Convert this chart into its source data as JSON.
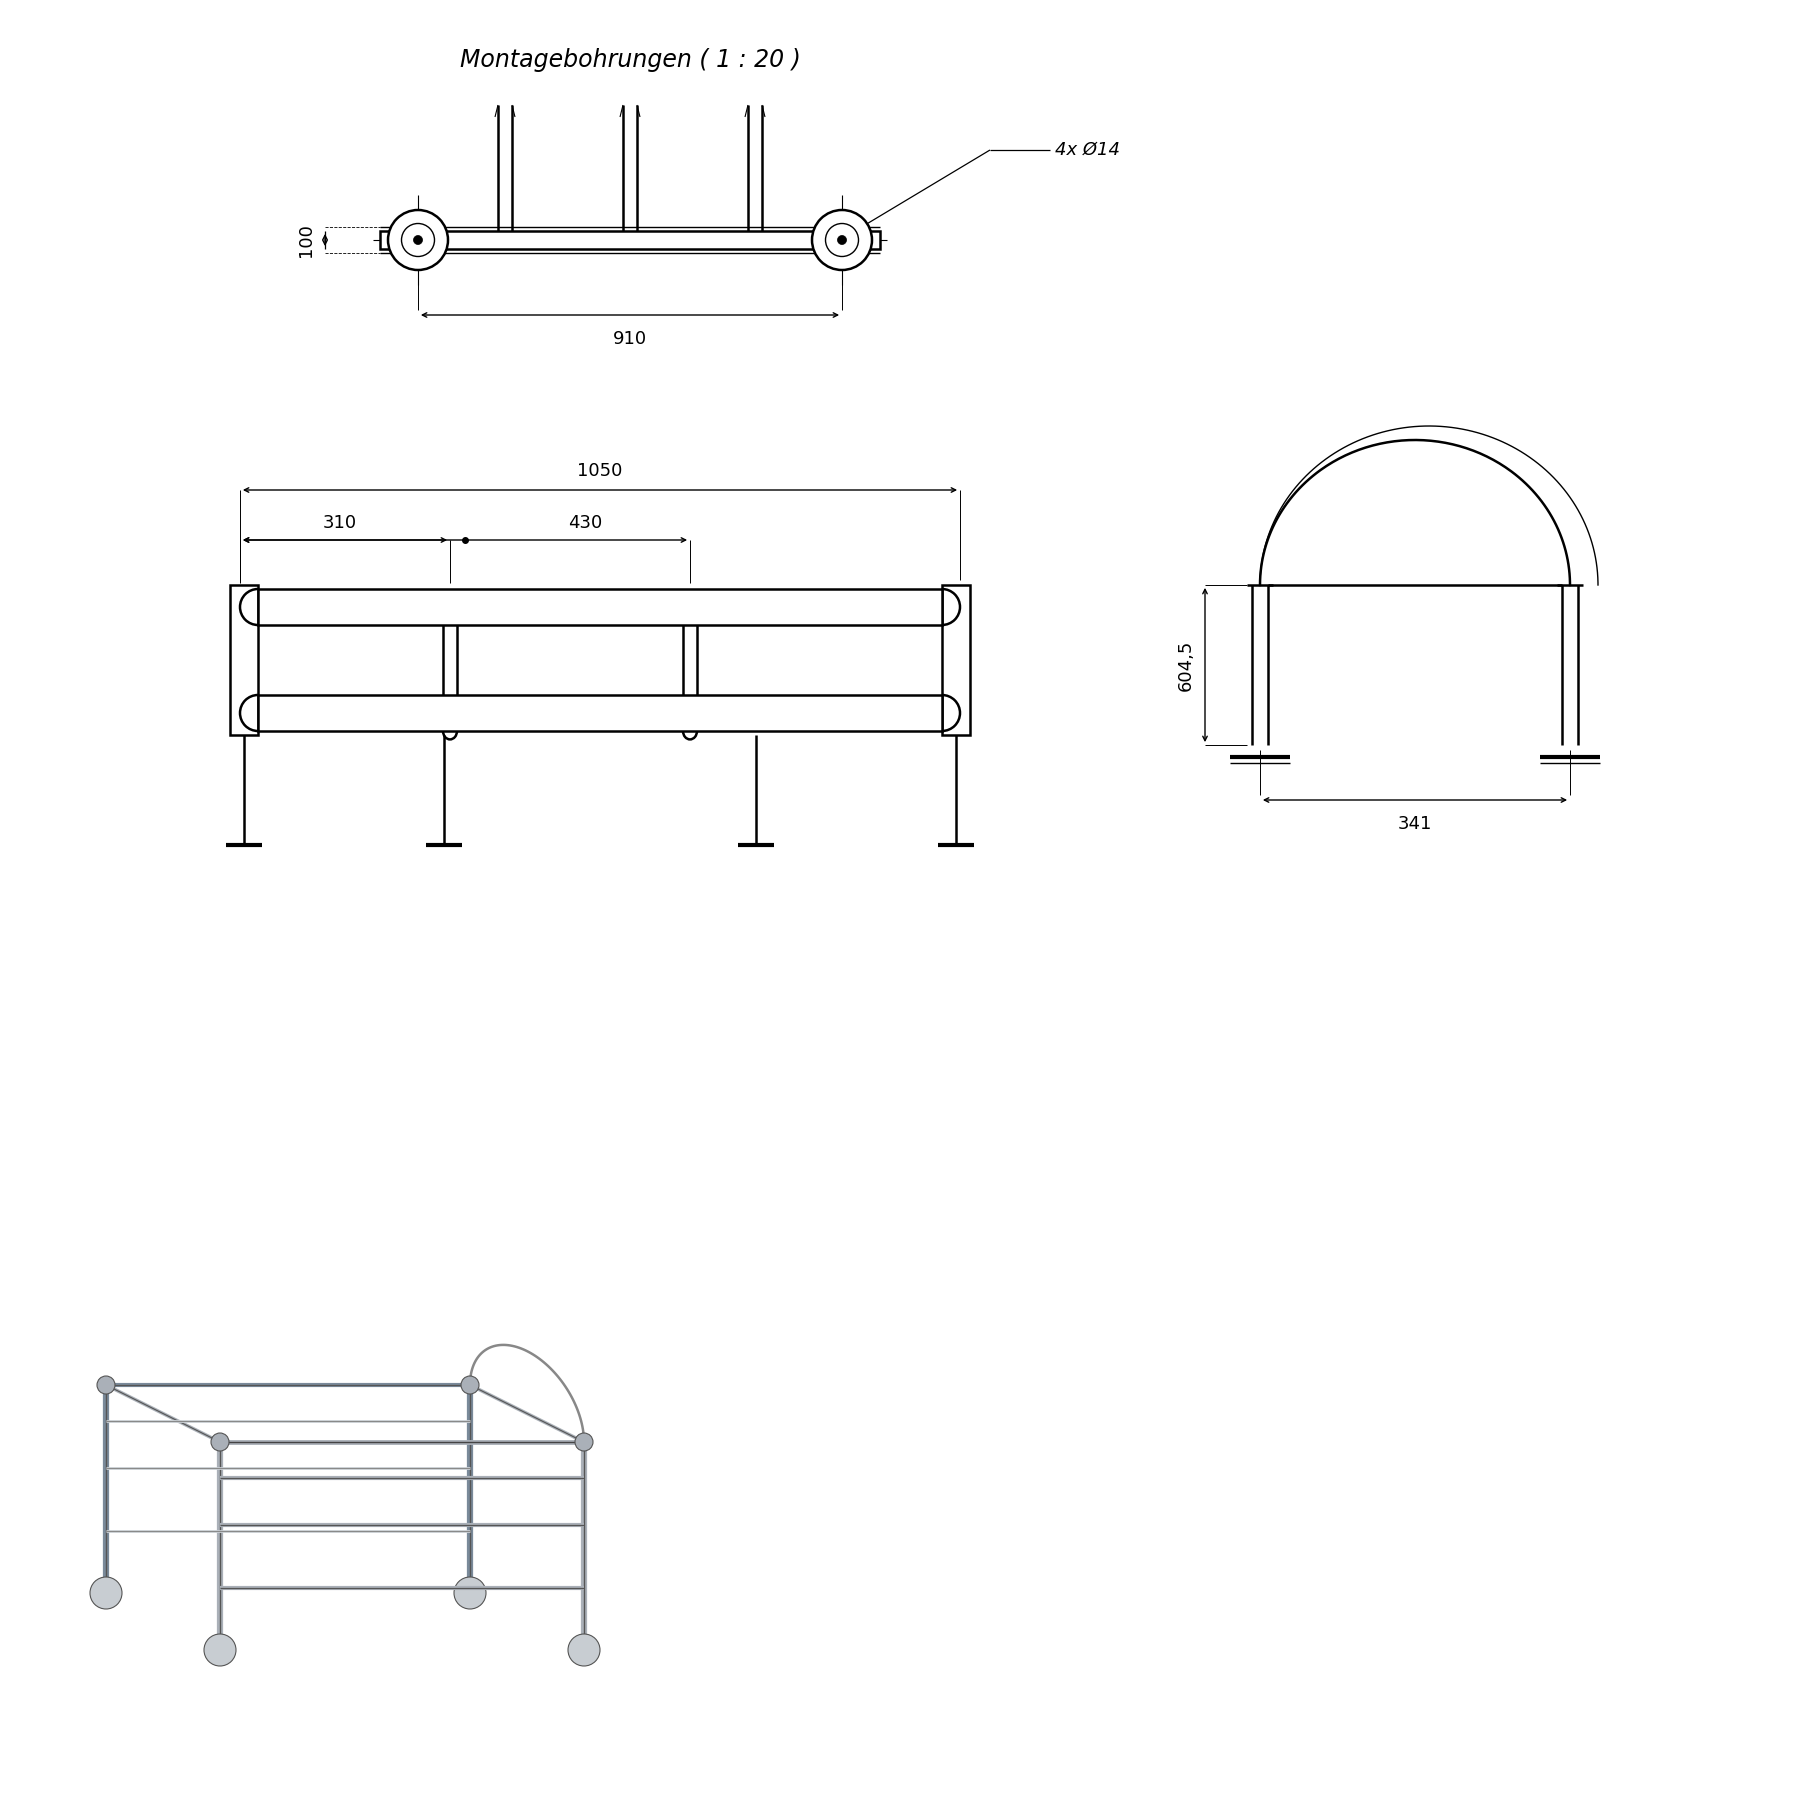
{
  "title": "Montagebohrungen ( 1 : 20 )",
  "bg_color": "#ffffff",
  "line_color": "#000000",
  "font_size_title": 17,
  "font_size_dim": 13
}
